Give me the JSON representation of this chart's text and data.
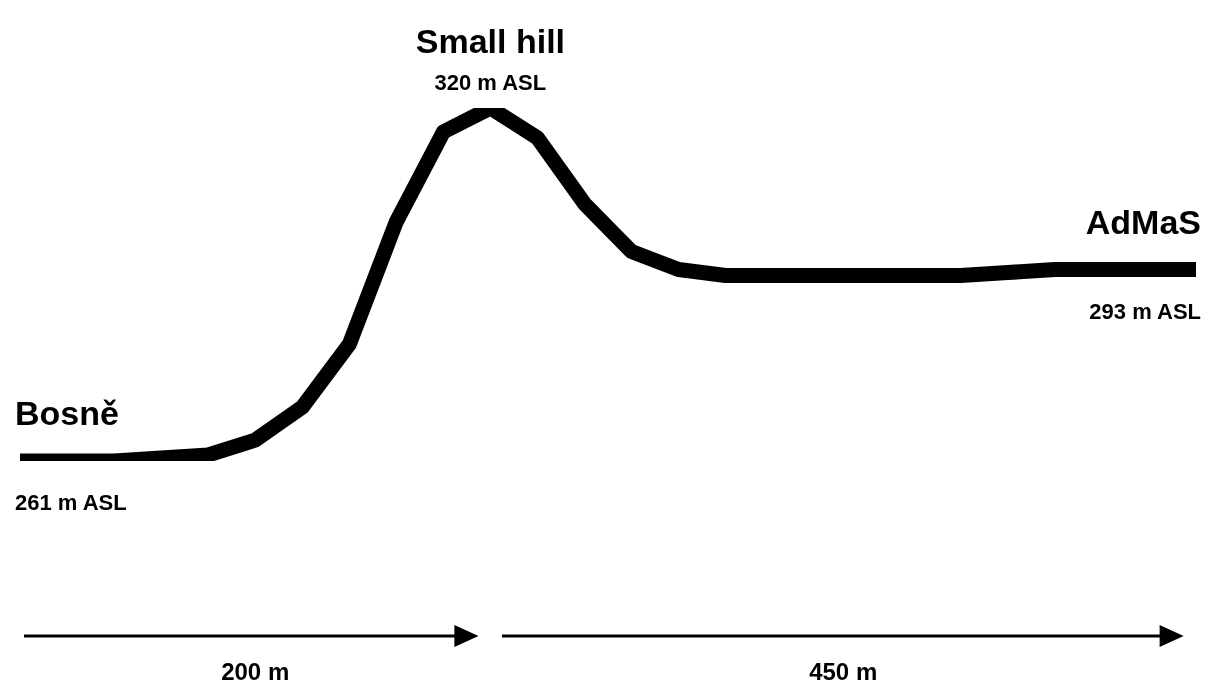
{
  "chart_data": {
    "type": "line",
    "categories": [
      null,
      null,
      null,
      null,
      null,
      null,
      null,
      null,
      null,
      null,
      null,
      null,
      null,
      null,
      null,
      null,
      null,
      null,
      null,
      null,
      null,
      null,
      null,
      null,
      null,
      null
    ],
    "values": [
      261,
      261,
      261,
      261.5,
      262,
      264.5,
      270,
      280.5,
      301,
      316,
      320,
      315,
      304,
      296,
      293,
      292,
      292,
      292,
      292,
      292,
      292,
      292.5,
      293,
      293,
      293,
      293
    ],
    "value_labels": [
      "261 m ASL",
      null,
      null,
      null,
      null,
      null,
      null,
      null,
      null,
      null,
      "320 m ASL",
      null,
      null,
      null,
      null,
      null,
      null,
      null,
      null,
      null,
      null,
      null,
      null,
      null,
      null,
      "293 m ASL"
    ],
    "color": "#000000",
    "marker": "none",
    "line_style": "solid",
    "legend": false,
    "annotations": [
      "Bosně",
      "Small hill",
      "AdMaS",
      "200 m",
      "450 m"
    ]
  }
}
